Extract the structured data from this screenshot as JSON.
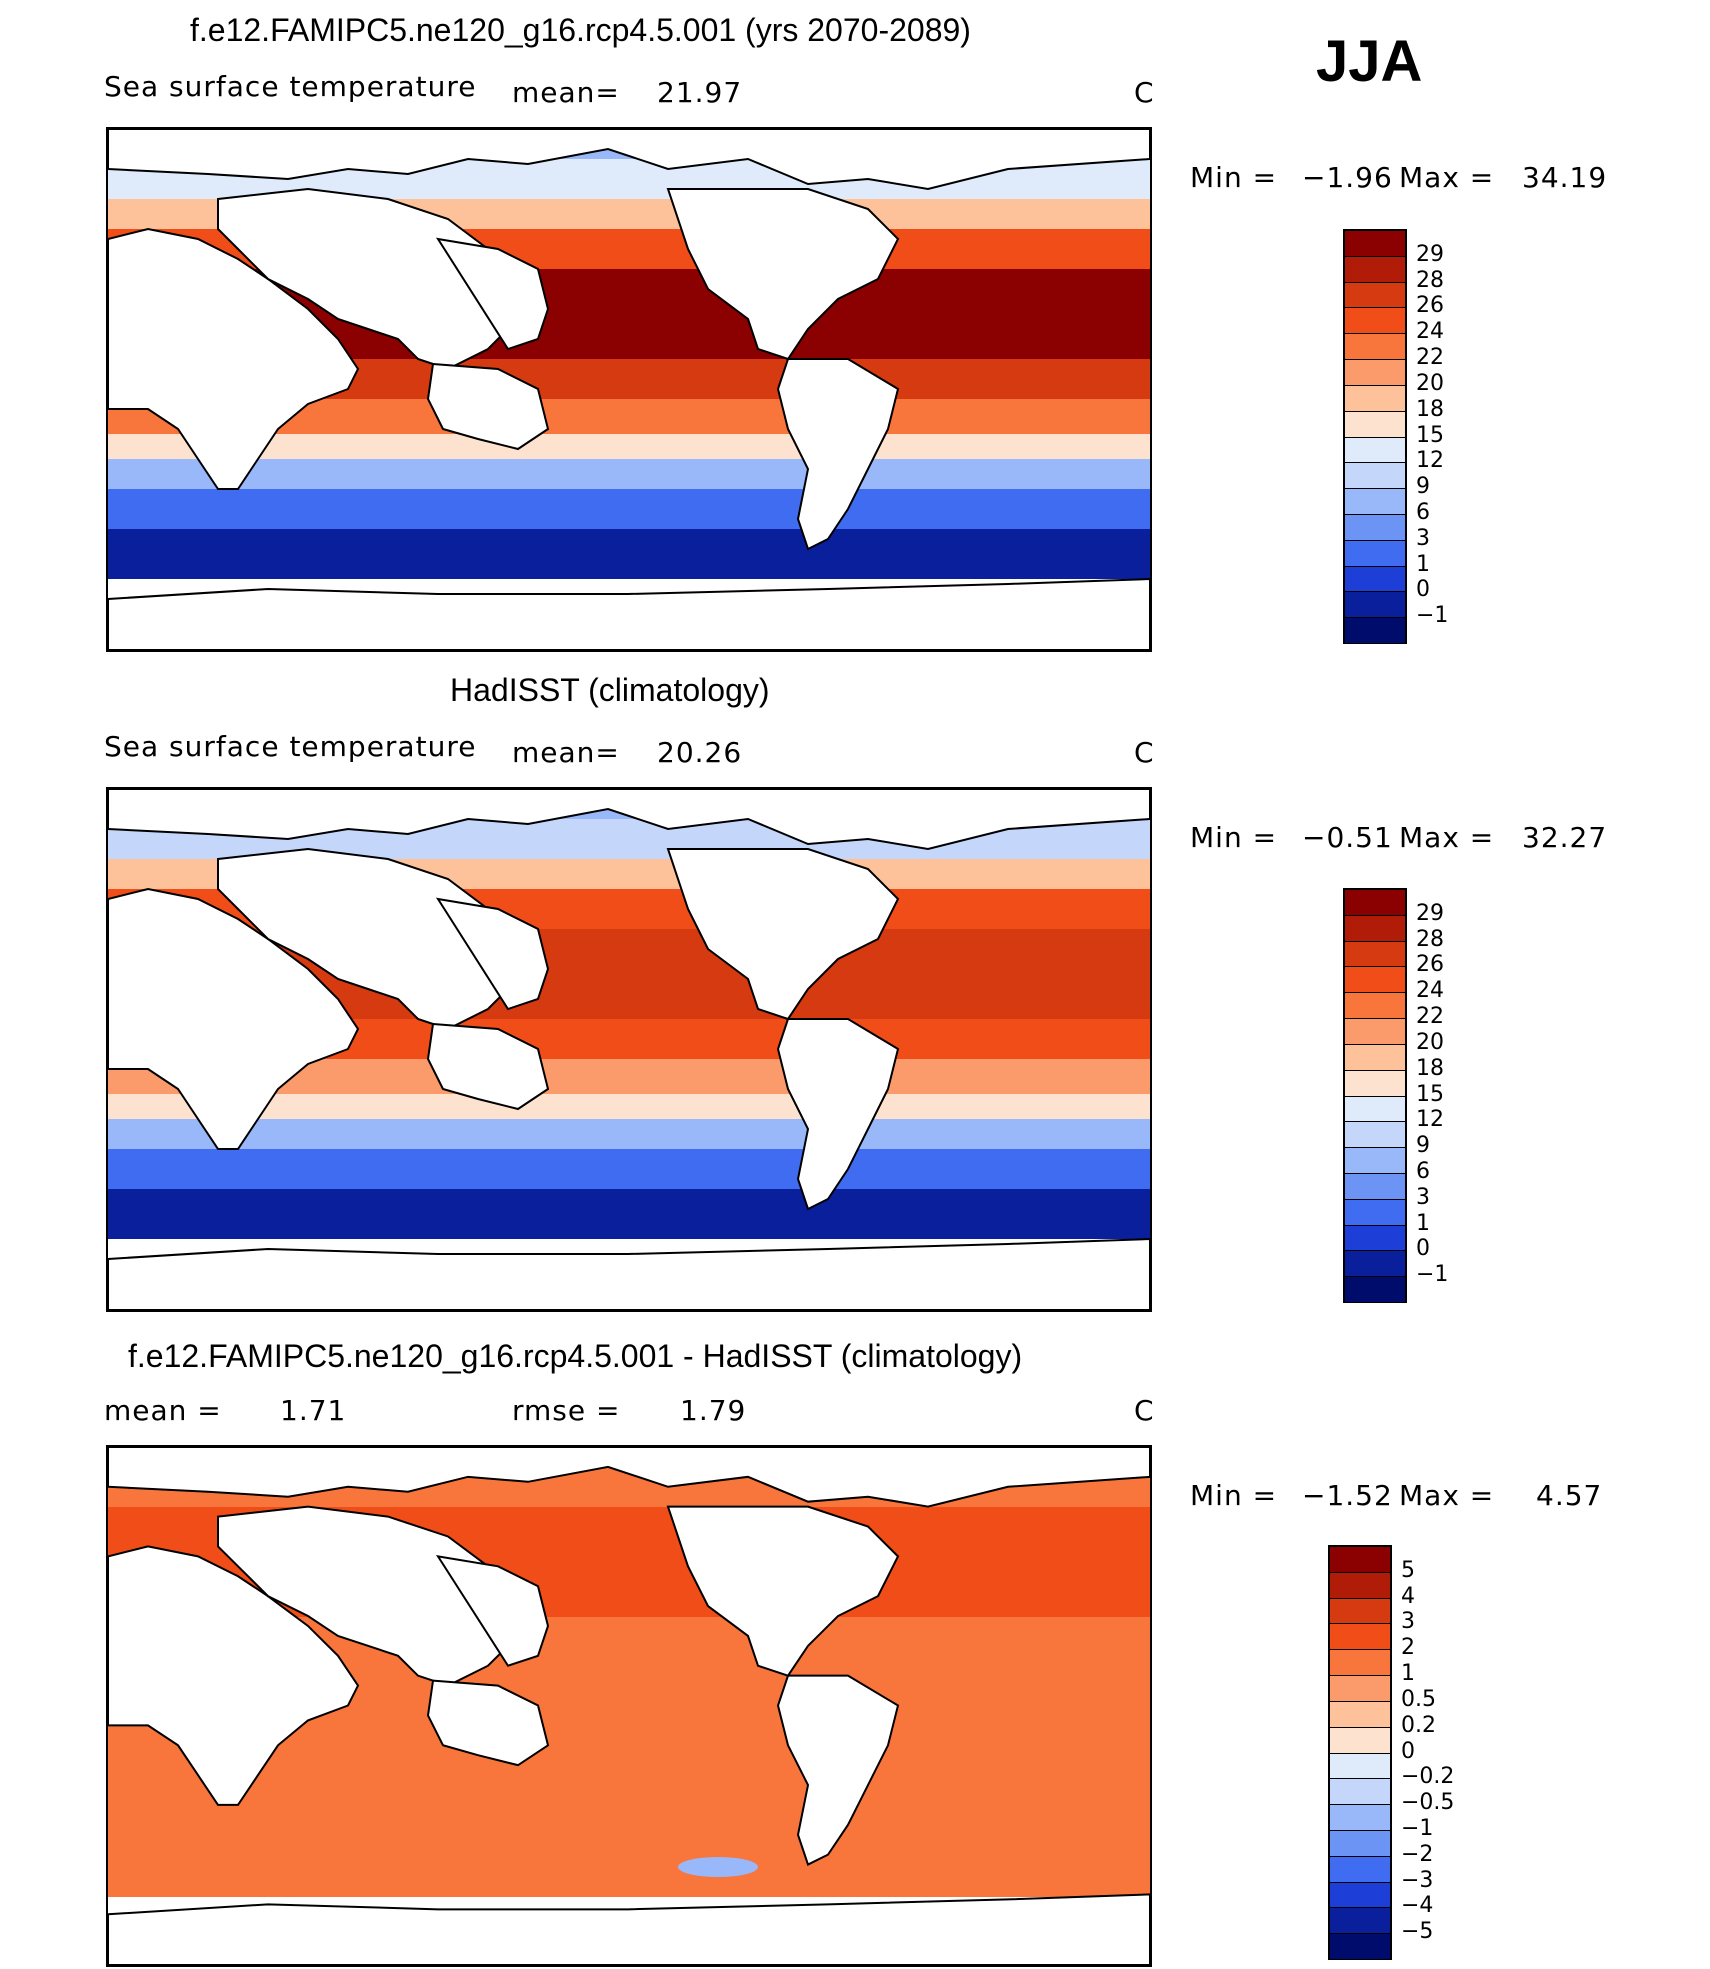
{
  "season": "JJA",
  "panels": [
    {
      "id": "model",
      "title": "f.e12.FAMIPC5.ne120_g16.rcp4.5.001 (yrs 2070-2089)",
      "variable": "Sea surface temperature",
      "stat_label": "mean=",
      "stat_value": "21.97",
      "units": "C",
      "min_label": "Min =",
      "min_value": "−1.96",
      "max_label": "Max =",
      "max_value": "34.19",
      "colorbar_labels": [
        "29",
        "28",
        "26",
        "24",
        "22",
        "20",
        "18",
        "15",
        "12",
        "9",
        "6",
        "3",
        "1",
        "0",
        "−1"
      ],
      "colorbar_colors": [
        "#8b0000",
        "#b01c08",
        "#d53a10",
        "#f04d18",
        "#f8753c",
        "#fb9a6a",
        "#fdc29a",
        "#fde3cf",
        "#dfeafb",
        "#c4d7fb",
        "#98b8fa",
        "#6b94f5",
        "#3f6cf0",
        "#1d3fd8",
        "#0a1f9c",
        "#000c6b"
      ]
    },
    {
      "id": "obs",
      "title": "HadISST (climatology)",
      "variable": "Sea surface temperature",
      "stat_label": "mean=",
      "stat_value": "20.26",
      "units": "C",
      "min_label": "Min =",
      "min_value": "−0.51",
      "max_label": "Max =",
      "max_value": "32.27",
      "colorbar_labels": [
        "29",
        "28",
        "26",
        "24",
        "22",
        "20",
        "18",
        "15",
        "12",
        "9",
        "6",
        "3",
        "1",
        "0",
        "−1"
      ],
      "colorbar_colors": [
        "#8b0000",
        "#b01c08",
        "#d53a10",
        "#f04d18",
        "#f8753c",
        "#fb9a6a",
        "#fdc29a",
        "#fde3cf",
        "#dfeafb",
        "#c4d7fb",
        "#98b8fa",
        "#6b94f5",
        "#3f6cf0",
        "#1d3fd8",
        "#0a1f9c",
        "#000c6b"
      ]
    },
    {
      "id": "diff",
      "title": "f.e12.FAMIPC5.ne120_g16.rcp4.5.001 - HadISST (climatology)",
      "mean_label": "mean =",
      "mean_value": "1.71",
      "rmse_label": "rmse =",
      "rmse_value": "1.79",
      "units": "C",
      "min_label": "Min =",
      "min_value": "−1.52",
      "max_label": "Max =",
      "max_value": "4.57",
      "colorbar_labels": [
        "5",
        "4",
        "3",
        "2",
        "1",
        "0.5",
        "0.2",
        "0",
        "−0.2",
        "−0.5",
        "−1",
        "−2",
        "−3",
        "−4",
        "−5"
      ],
      "colorbar_colors": [
        "#8b0000",
        "#b01c08",
        "#d53a10",
        "#f04d18",
        "#f8753c",
        "#fb9a6a",
        "#fdc29a",
        "#fde3cf",
        "#dfeafb",
        "#c4d7fb",
        "#98b8fa",
        "#6b94f5",
        "#3f6cf0",
        "#1d3fd8",
        "#0a1f9c",
        "#000c6b"
      ]
    }
  ]
}
